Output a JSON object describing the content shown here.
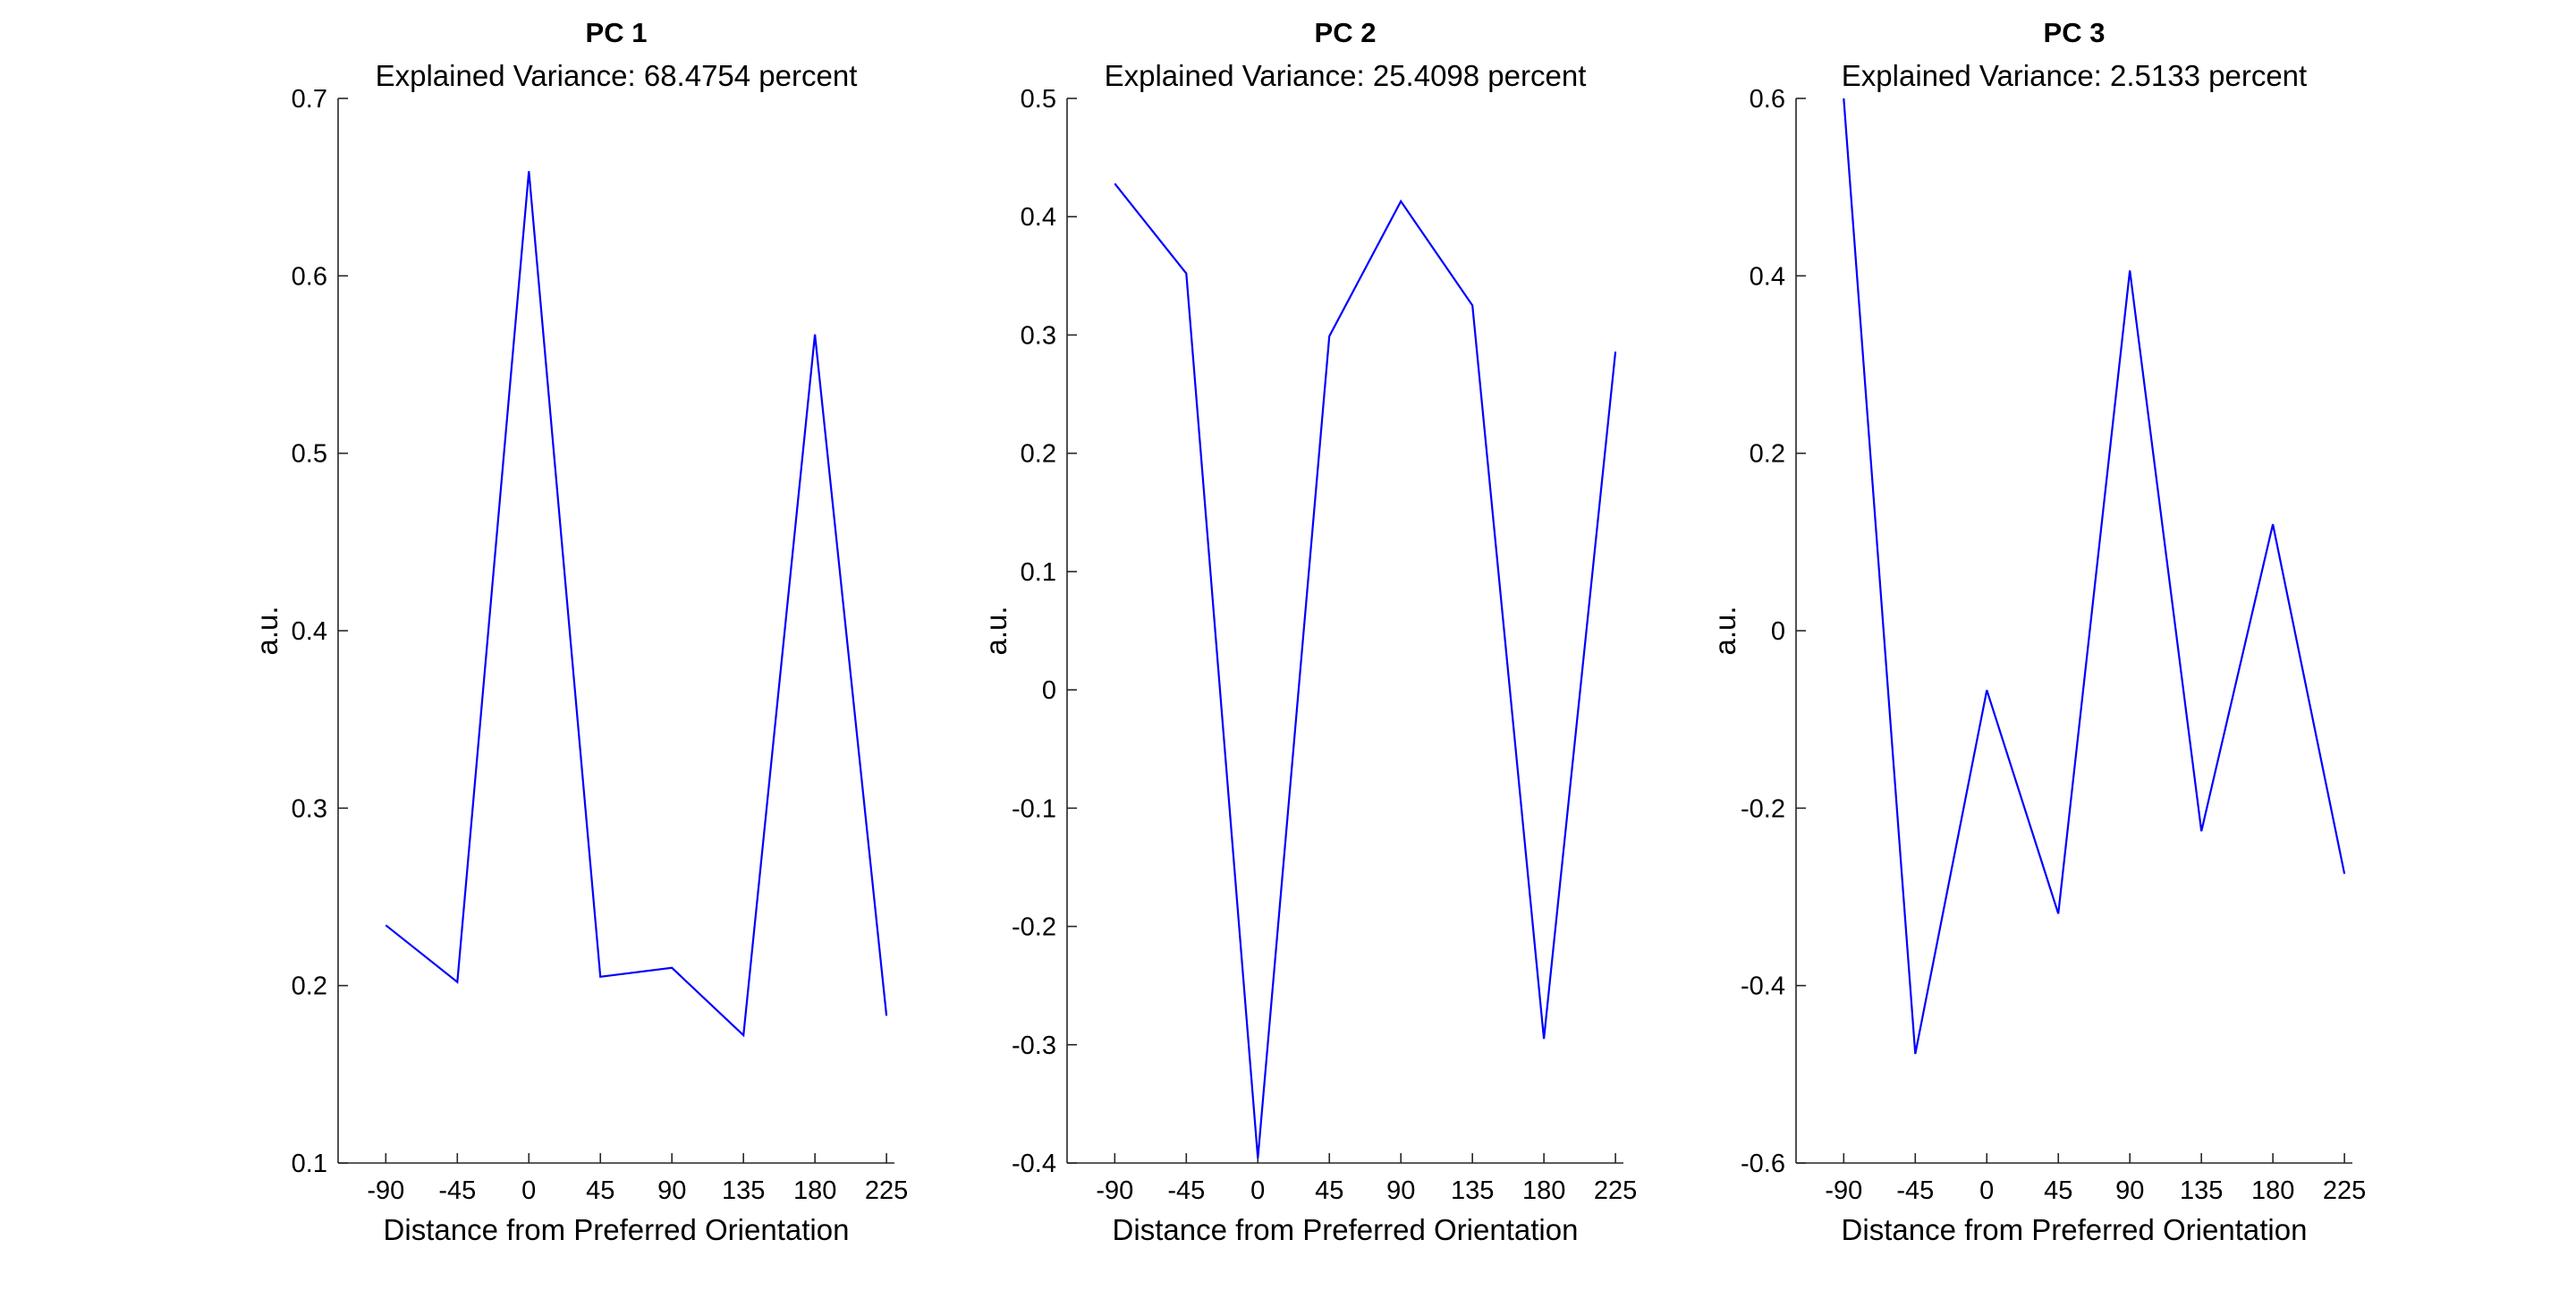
{
  "colors": {
    "line": "#0000ff",
    "axis": "#262626",
    "background": "#ffffff"
  },
  "chart_data": [
    {
      "type": "line",
      "title": "PC 1",
      "subtitle": "Explained Variance: 68.4754 percent",
      "xlabel": "Distance from Preferred Orientation",
      "ylabel": "a.u.",
      "xlim": [
        -120,
        230
      ],
      "ylim": [
        0.1,
        0.7
      ],
      "xticks": [
        -90,
        -45,
        0,
        45,
        90,
        135,
        180,
        225
      ],
      "yticks": [
        0.1,
        0.2,
        0.3,
        0.4,
        0.5,
        0.6,
        0.7
      ],
      "ytick_labels": [
        "0.1",
        "0.2",
        "0.3",
        "0.4",
        "0.5",
        "0.6",
        "0.7"
      ],
      "grid": false,
      "series": [
        {
          "x": [
            -90,
            -45,
            0,
            45,
            90,
            135,
            180,
            225
          ],
          "y": [
            0.234,
            0.202,
            0.659,
            0.205,
            0.21,
            0.172,
            0.567,
            0.183
          ]
        }
      ]
    },
    {
      "type": "line",
      "title": "PC 2",
      "subtitle": "Explained Variance: 25.4098 percent",
      "xlabel": "Distance from Preferred Orientation",
      "ylabel": "a.u.",
      "xlim": [
        -120,
        230
      ],
      "ylim": [
        -0.4,
        0.5
      ],
      "xticks": [
        -90,
        -45,
        0,
        45,
        90,
        135,
        180,
        225
      ],
      "yticks": [
        -0.4,
        -0.3,
        -0.2,
        -0.1,
        0,
        0.1,
        0.2,
        0.3,
        0.4,
        0.5
      ],
      "ytick_labels": [
        "-0.4",
        "-0.3",
        "-0.2",
        "-0.1",
        "0",
        "0.1",
        "0.2",
        "0.3",
        "0.4",
        "0.5"
      ],
      "grid": false,
      "series": [
        {
          "x": [
            -90,
            -45,
            0,
            45,
            90,
            135,
            180,
            225
          ],
          "y": [
            0.428,
            0.352,
            -0.396,
            0.299,
            0.413,
            0.325,
            -0.295,
            0.286
          ]
        }
      ]
    },
    {
      "type": "line",
      "title": "PC 3",
      "subtitle": "Explained Variance: 2.5133 percent",
      "xlabel": "Distance from Preferred Orientation",
      "ylabel": "a.u.",
      "xlim": [
        -120,
        230
      ],
      "ylim": [
        -0.6,
        0.6
      ],
      "xticks": [
        -90,
        -45,
        0,
        45,
        90,
        135,
        180,
        225
      ],
      "yticks": [
        -0.6,
        -0.4,
        -0.2,
        0,
        0.2,
        0.4,
        0.6
      ],
      "ytick_labels": [
        "-0.6",
        "-0.4",
        "-0.2",
        "0",
        "0.2",
        "0.4",
        "0.6"
      ],
      "grid": false,
      "series": [
        {
          "x": [
            -90,
            -45,
            0,
            45,
            90,
            135,
            180,
            225
          ],
          "y": [
            0.6,
            -0.477,
            -0.067,
            -0.319,
            0.406,
            -0.226,
            0.12,
            -0.274
          ]
        }
      ]
    }
  ]
}
